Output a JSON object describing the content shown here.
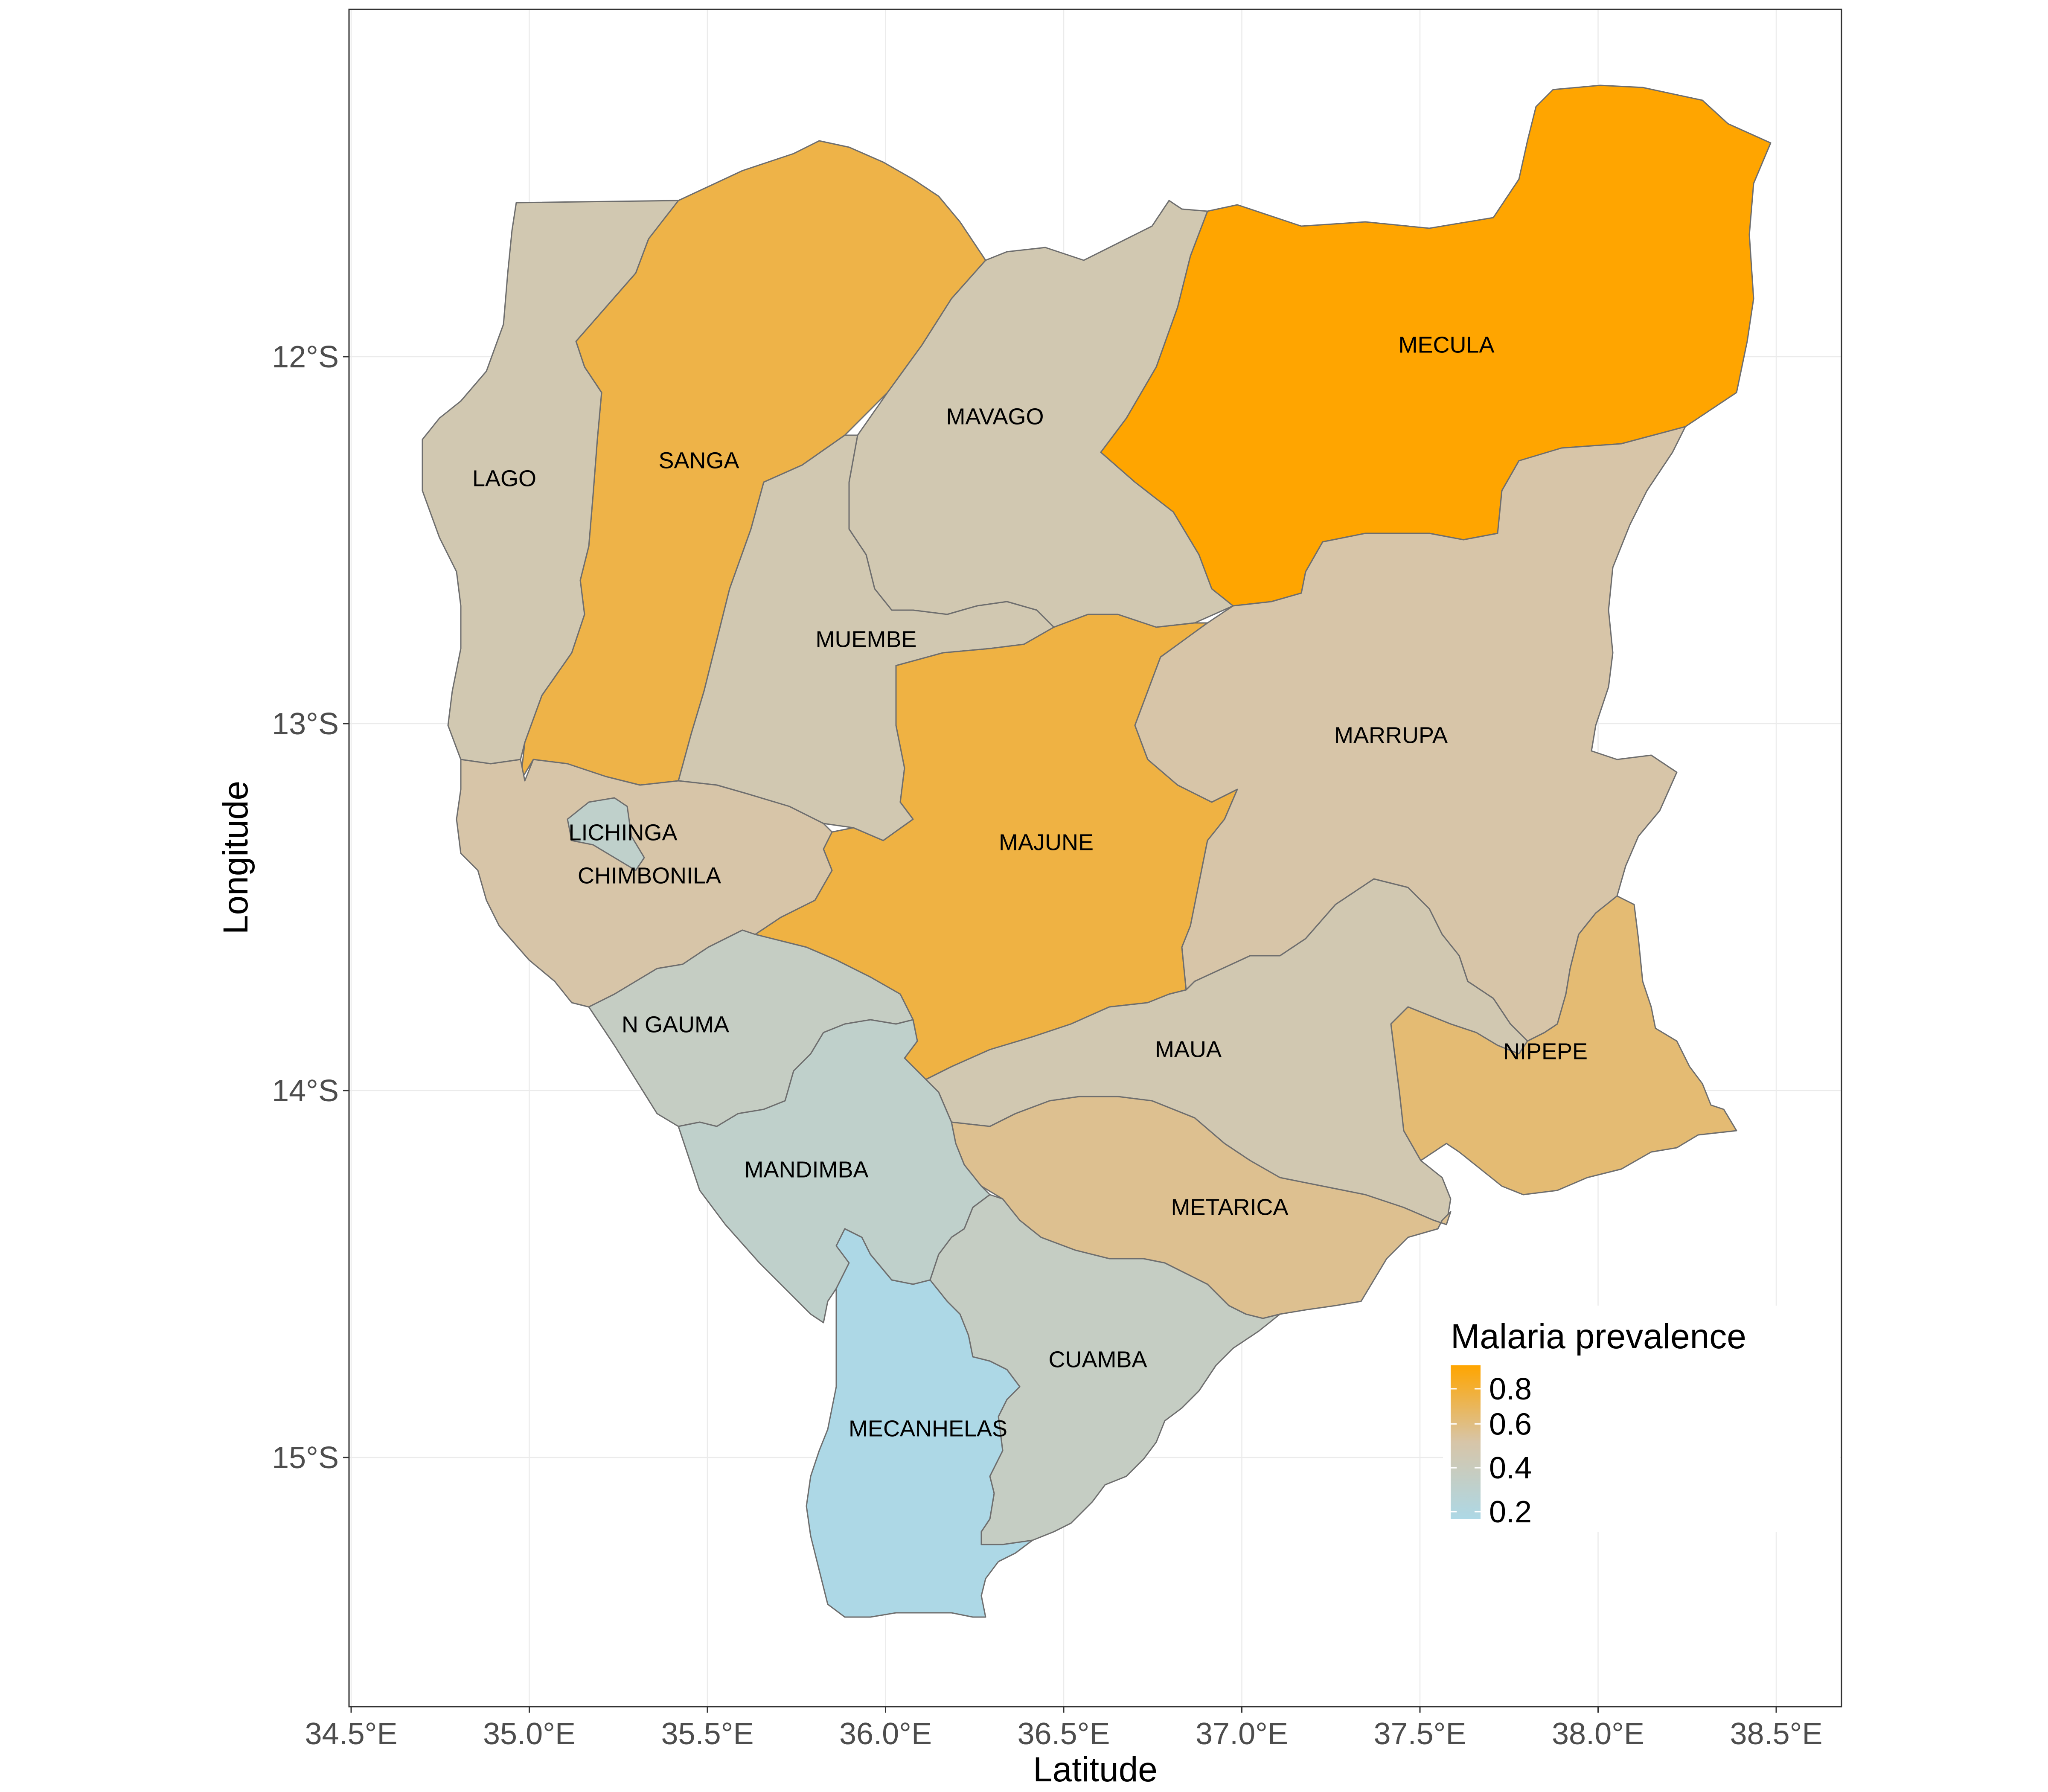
{
  "chart_data": {
    "type": "choropleth",
    "xlabel": "Latitude",
    "ylabel": "Longitude",
    "x_ticks": [
      "34.5°E",
      "35.0°E",
      "35.5°E",
      "36.0°E",
      "36.5°E",
      "37.0°E",
      "37.5°E",
      "38.0°E",
      "38.5°E"
    ],
    "y_ticks": [
      "12°S",
      "13°S",
      "14°S",
      "15°S"
    ],
    "legend": {
      "title": "Malaria prevalence",
      "ticks": [
        "0.8",
        "0.6",
        "0.4",
        "0.2"
      ],
      "color_low": "#add8e6",
      "color_high": "#ffa500"
    },
    "districts": [
      {
        "name": "MECULA",
        "prevalence": 0.9
      },
      {
        "name": "SANGA",
        "prevalence": 0.75
      },
      {
        "name": "MAJUNE",
        "prevalence": 0.76
      },
      {
        "name": "NIPEPE",
        "prevalence": 0.66
      },
      {
        "name": "METARICA",
        "prevalence": 0.6
      },
      {
        "name": "MARRUPA",
        "prevalence": 0.55
      },
      {
        "name": "CHIMBONILA",
        "prevalence": 0.55
      },
      {
        "name": "LAGO",
        "prevalence": 0.5
      },
      {
        "name": "MAVAGO",
        "prevalence": 0.5
      },
      {
        "name": "MUEMBE",
        "prevalence": 0.5
      },
      {
        "name": "MAUA",
        "prevalence": 0.5
      },
      {
        "name": "N GAUMA",
        "prevalence": 0.4
      },
      {
        "name": "CUAMBA",
        "prevalence": 0.4
      },
      {
        "name": "MANDIMBA",
        "prevalence": 0.35
      },
      {
        "name": "LICHINGA",
        "prevalence": 0.35
      },
      {
        "name": "MECANHELAS",
        "prevalence": 0.2
      }
    ]
  }
}
